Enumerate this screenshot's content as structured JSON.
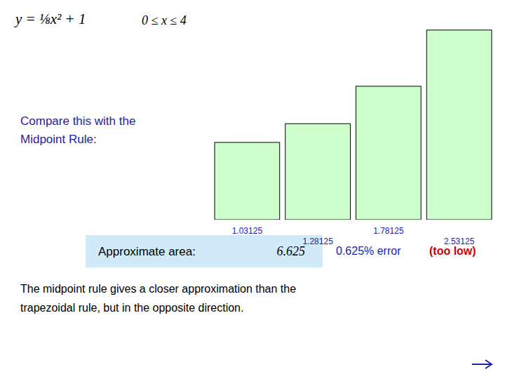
{
  "chart_data": {
    "type": "bar",
    "categories": [
      null,
      null,
      null,
      null
    ],
    "values": [
      1.03125,
      1.28125,
      1.78125,
      2.53125
    ],
    "color": "#ccffcc",
    "ylim": [
      0,
      2.6325
    ],
    "data_labels": true,
    "tick_labels": false,
    "annotations": [
      "y = ⅛x² + 1",
      "0 ≤ x ≤ 4",
      "Compare this with the\nMidpoint Rule:",
      "Approximate area:",
      "6.625",
      "0.625% error",
      "(too low)",
      "The midpoint rule gives a closer approximation than the\ntrapezoidal rule, but in the opposite direction."
    ]
  }
}
